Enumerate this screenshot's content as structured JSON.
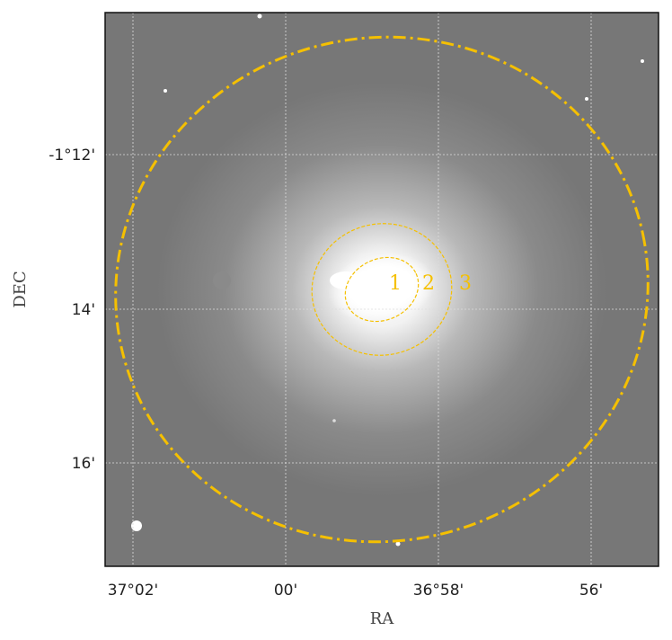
{
  "x_axis": {
    "label": "RA",
    "ticks": [
      "37°02'",
      "00'",
      "36°58'",
      "56'"
    ]
  },
  "y_axis": {
    "label": "DEC",
    "ticks": [
      "-1°12'",
      "14'",
      "16'"
    ]
  },
  "regions": [
    "1",
    "2",
    "3"
  ]
}
